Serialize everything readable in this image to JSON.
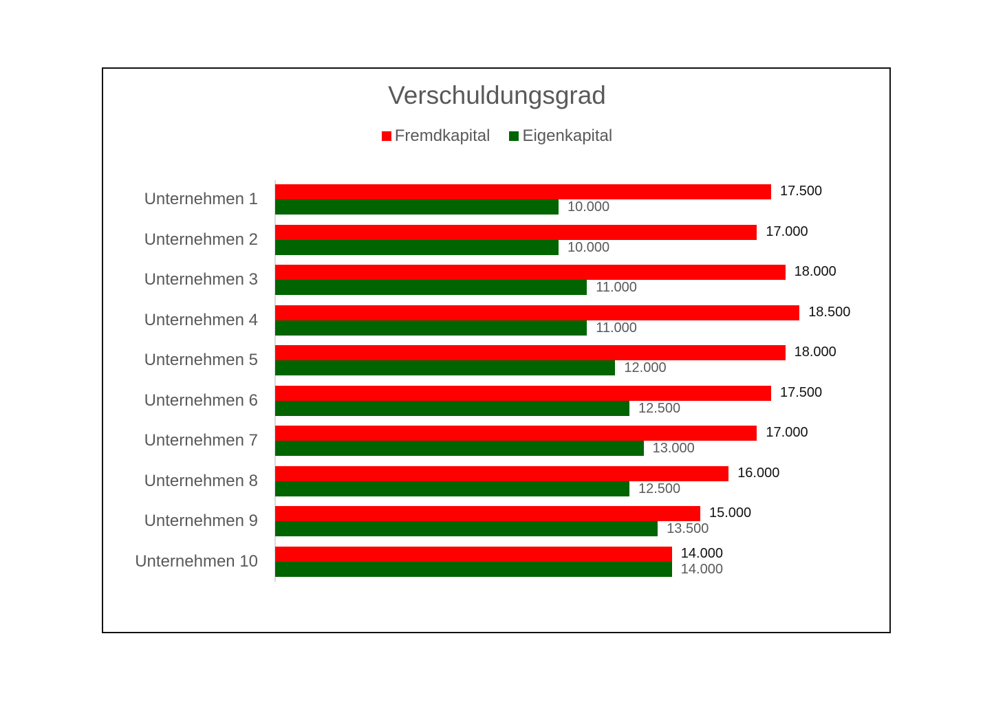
{
  "chart_data": {
    "type": "bar",
    "orientation": "horizontal",
    "title": "Verschuldungsgrad",
    "xlabel": "",
    "ylabel": "",
    "xlim": [
      0,
      20000
    ],
    "grid": false,
    "legend_position": "top",
    "categories": [
      "Unternehmen 1",
      "Unternehmen 2",
      "Unternehmen 3",
      "Unternehmen 4",
      "Unternehmen 5",
      "Unternehmen 6",
      "Unternehmen 7",
      "Unternehmen 8",
      "Unternehmen 9",
      "Unternehmen 10"
    ],
    "series": [
      {
        "name": "Fremdkapital",
        "color": "#ff0000",
        "values": [
          17500,
          17000,
          18000,
          18500,
          18000,
          17500,
          17000,
          16000,
          15000,
          14000
        ],
        "labels": [
          "17.500",
          "17.000",
          "18.000",
          "18.500",
          "18.000",
          "17.500",
          "17.000",
          "16.000",
          "15.000",
          "14.000"
        ]
      },
      {
        "name": "Eigenkapital",
        "color": "#006400",
        "values": [
          10000,
          10000,
          11000,
          11000,
          12000,
          12500,
          13000,
          12500,
          13500,
          14000
        ],
        "labels": [
          "10.000",
          "10.000",
          "11.000",
          "11.000",
          "12.000",
          "12.500",
          "13.000",
          "12.500",
          "13.500",
          "14.000"
        ]
      }
    ]
  },
  "legend": [
    {
      "label": "Fremdkapital",
      "color": "#ff0000"
    },
    {
      "label": "Eigenkapital",
      "color": "#006400"
    }
  ]
}
